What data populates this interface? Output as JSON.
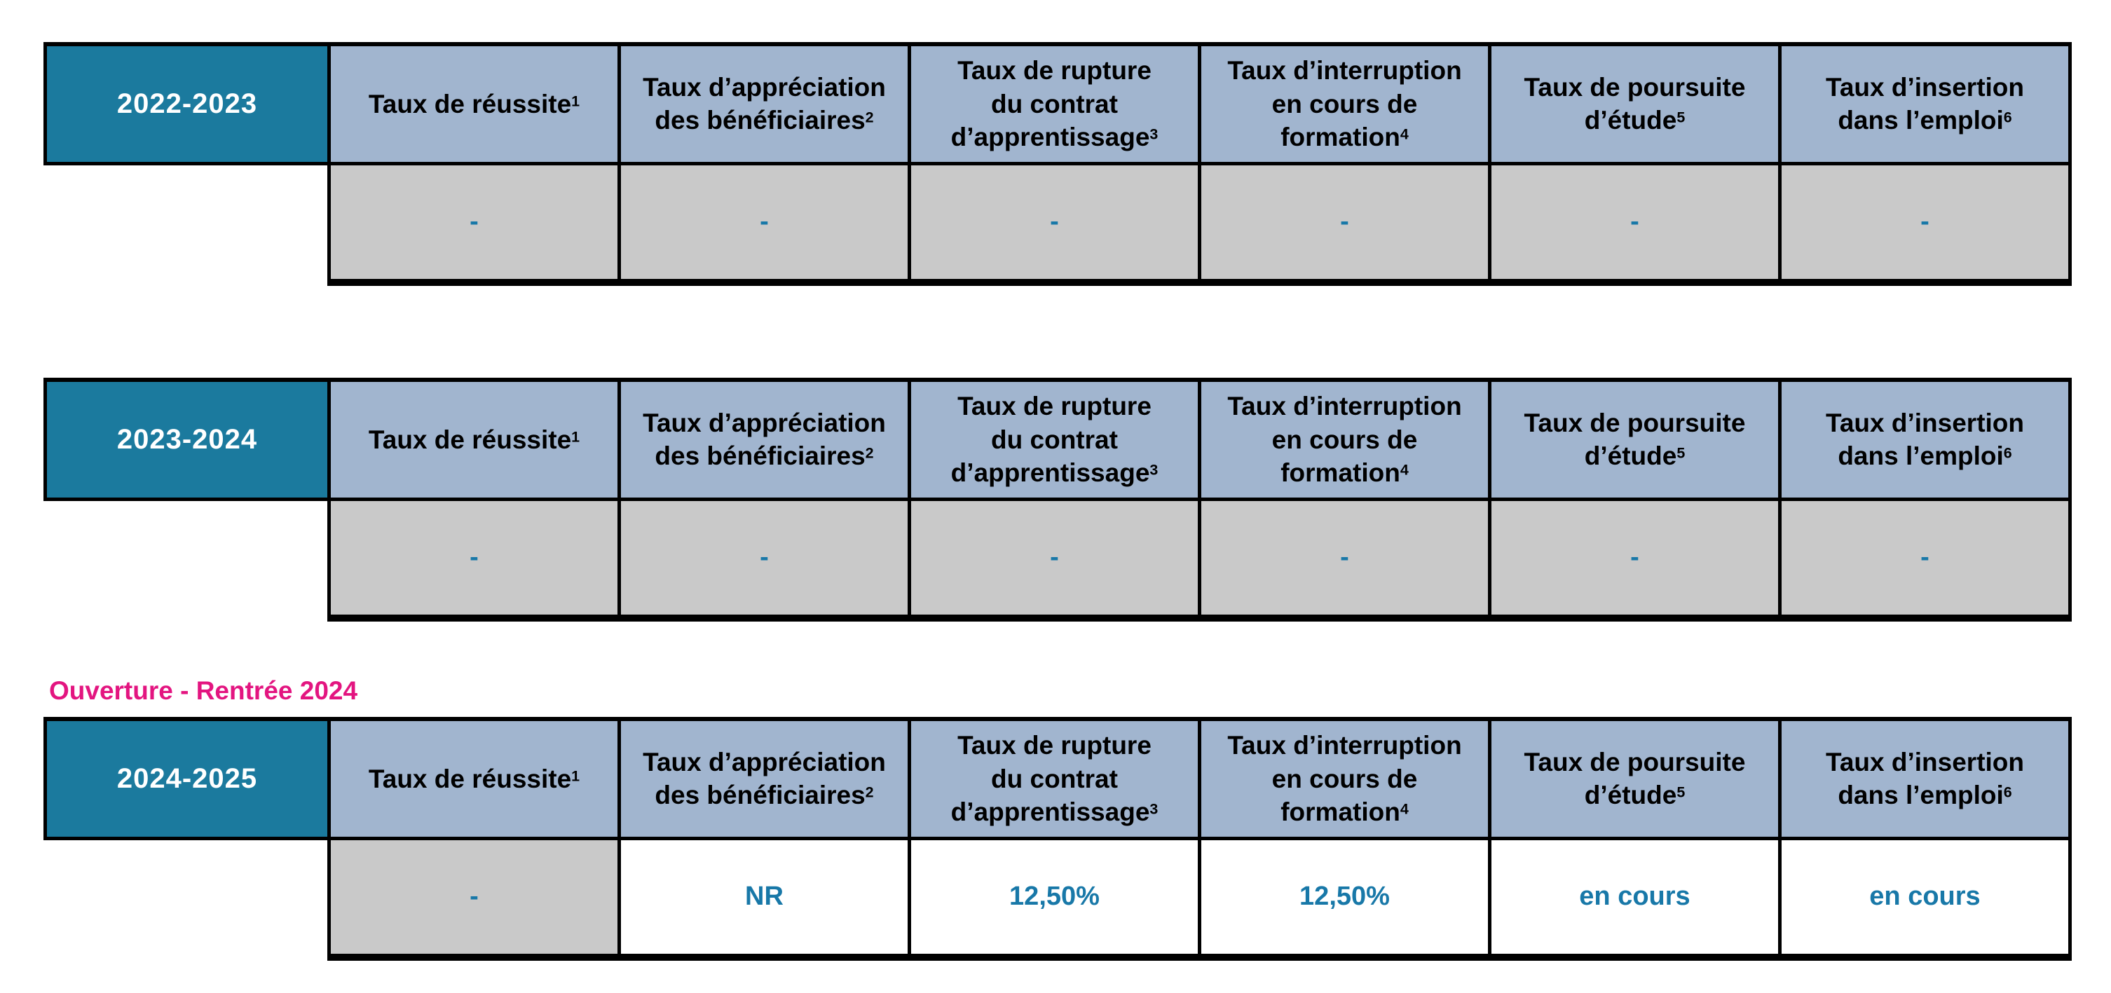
{
  "colors": {
    "page_bg": "#FFFFFF",
    "teal_fill": "#1B7A9E",
    "header_blue": "#A1B5CF",
    "gray_fill": "#C9C9C9",
    "value_text": "#1878A8",
    "pink": "#E31580",
    "border": "#000000",
    "year_text": "#FFFFFF",
    "header_text": "#000000"
  },
  "columns": [
    {
      "lines": [
        "Taux de réussite"
      ],
      "sup": "1"
    },
    {
      "lines": [
        "Taux d’appréciation",
        "des bénéficiaires"
      ],
      "sup": "2"
    },
    {
      "lines": [
        "Taux de rupture",
        "du contrat",
        "d’apprentissage"
      ],
      "sup": "3"
    },
    {
      "lines": [
        "Taux d’interruption",
        "en cours de",
        "formation"
      ],
      "sup": "4"
    },
    {
      "lines": [
        "Taux de poursuite",
        "d’étude"
      ],
      "sup": "5"
    },
    {
      "lines": [
        "Taux d’insertion",
        "dans l’emploi"
      ],
      "sup": "6"
    }
  ],
  "note": {
    "text": "Ouverture - Rentrée 2024"
  },
  "tables": [
    {
      "year": "2022-2023",
      "cells": [
        "-",
        "-",
        "-",
        "-",
        "-",
        "-"
      ]
    },
    {
      "year": "2023-2024",
      "cells": [
        "-",
        "-",
        "-",
        "-",
        "-",
        "-"
      ]
    },
    {
      "year": "2024-2025",
      "cells": [
        "-",
        "NR",
        "12,50%",
        "12,50%",
        "en cours",
        "en cours"
      ]
    }
  ]
}
